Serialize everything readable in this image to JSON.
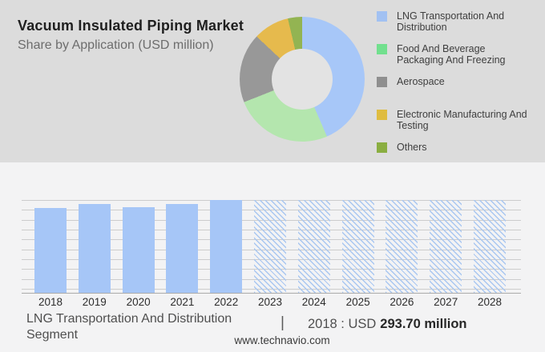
{
  "chart_data": [
    {
      "type": "pie",
      "donut": true,
      "title": "Vacuum Insulated Piping Market",
      "subtitle": "Share by Application (USD million)",
      "labels": [
        "LNG Transportation And Distribution",
        "Food And Beverage Packaging And Freezing",
        "Aerospace",
        "Electronic Manufacturing And Testing",
        "Others"
      ],
      "values": [
        43.5,
        25.5,
        18.0,
        9.3,
        3.7
      ],
      "values_unit": "percent share, estimated from arc angles",
      "slice_colors": [
        "#a7c7f8",
        "#b4e6ae",
        "#989898",
        "#e6ba4d",
        "#93b452"
      ],
      "legend_colors": [
        "#a2c1f2",
        "#72e08e",
        "#8f8f8f",
        "#dfbc40",
        "#8aae41"
      ],
      "legend_position": "right",
      "start_angle_deg": 0,
      "direction": "clockwise"
    },
    {
      "type": "bar",
      "categories": [
        "2018",
        "2019",
        "2020",
        "2021",
        "2022",
        "2023",
        "2024",
        "2025",
        "2026",
        "2027",
        "2028"
      ],
      "values": [
        293.7,
        306.4,
        297.5,
        307.3,
        321.2,
        null,
        null,
        null,
        null,
        null,
        null
      ],
      "values_unit": "USD million; 2018 labeled on image, 2019-2022 estimated from bar heights, null = forecast year drawn as full-height hatched bar",
      "forecast_categories": [
        "2023",
        "2024",
        "2025",
        "2026",
        "2027",
        "2028"
      ],
      "ylim": [
        0,
        321.2
      ],
      "grid": true,
      "gridline_count": 10,
      "bar_color": "#a6c6f7",
      "forecast_hatch_color": "#a9c7f1",
      "xlabel": "",
      "ylabel": ""
    }
  ],
  "bottom": {
    "segment_label": "LNG Transportation And Distribution Segment",
    "separator": "|",
    "value_year_prefix": "2018 : USD",
    "value_amount": "293.70 million",
    "footer_url": "www.technavio.com"
  }
}
